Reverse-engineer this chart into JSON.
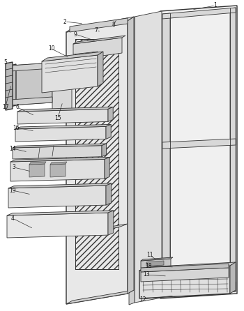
{
  "bg_color": "#ffffff",
  "line_color": "#333333",
  "text_color": "#111111",
  "fig_width": 3.5,
  "fig_height": 4.46,
  "dpi": 100,
  "lw": 0.6,
  "lw_heavy": 1.0
}
